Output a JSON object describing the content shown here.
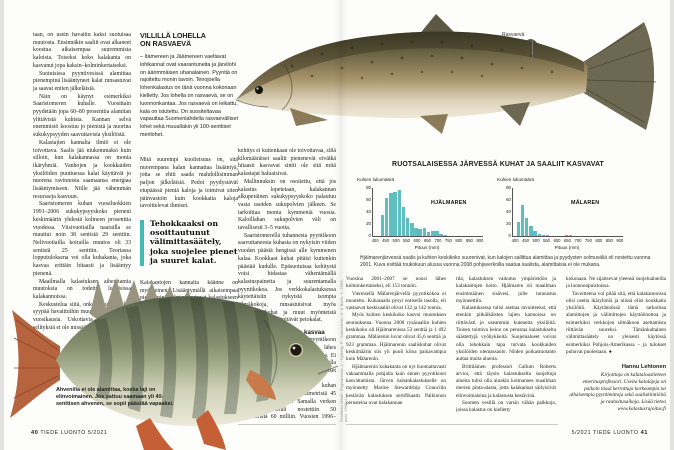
{
  "magazine": {
    "name": "TIEDE LUONTO",
    "issue": "5/2021",
    "left_page_num": "40",
    "right_page_num": "41"
  },
  "colors": {
    "accent_teal": "#43b9b2",
    "bar_teal": "#5fbebf"
  },
  "left_page": {
    "col1": [
      "taan, on usein havaittu kaksi suotuisaa muutosta. Ensinnäkin saaliit ovat alkaneet koostua aikaisempaa suuremmista kaloista. Toiseksi koko kalakanta on kasvanut jopa kaksin–kolminkertaiseksi.",
      "Suotuisissa pyyntivesissä alamittaa pienempinä lisääntyneet kalat runsastuvat ja saavat eniten jälkeläisiä.",
      "Näin on käynyt esimerkiksi Saaristomeren kuhalle. Vuosittain pyydetään jopa 60–80 prosenttia alamitan ylittävistä kuhista. Kannan selvä enemmistö koostuu jo pienistä ja nuorina sukukypsyyden saavuttavista yksilöistä.",
      "Kalastajien kannalta ilmiö ei ole toivottava. Saalis jää niukemmaksi kuin silloin, kun kalakannassa on monia ikäryhmiä. Vanhojen ja kookkaiden yksilöiden puuttuessa kalat käyttävät jo nuorena ravinnosta saamaansa energiaa lisääntymiseen. Niille jää vähemmän resursseja kasvuun.",
      "Saaristomeren kuhan vuosiluokkien 1991–2006 sukukypsyyskoko pieneni keskimäärin yhdestä kolmeen prosenttia vuodessa. Viisivuotiailla naarailla se muuttui noin 38 sentistä 29 senttiin. Nelivuotiailla koirailla muutos oli 33 sentistä 25 senttiin. Teoriassa lopputuloksena voi olla kuhakanta, joka kasvaa erittäin hitaasti ja lisääntyy pienenä.",
      "Maailmalla kalastuksen aiheuttamia muutoksia on todettu lukuisissa kalakannoissa.",
      "Keskustelua siitä, onko kalastus pahin syypää havaittuihin muutoksiin, on käyty vuosikausia. Uskottavia vaihtoehtoisia selityksiä ei ole missään löytynyt."
    ],
    "sidebar": {
      "title_line1": "VILLILLÄ LOHELLA",
      "title_line2": "ON RASVAEVÄ",
      "body": "– Itämereen ja Jäämereen vaeltavat lohikannat ovat vaarantuneita ja järvilohi on äärimmäisen uhanalainen. Pyyntiä on rajoitettu monin tavoin. Tenojoella lohenkalastus on tänä vuonna kokonaan kielletty. Jos lohella on rasvaevä, se on luonnonkantaa. Jos rasvaevä on leikattu, kala on istutettu. On suositeltavaa vapauttaa Suomenlahdella rasvaevälliset lohet sekä muuallakin yli 100-senttiset merilohet."
    },
    "col2_before_quote": [
      "Mitä suurempi kuolleisuus on, sitä nuorempana kalan kannattaa lisääntyä, jotta se ehtii saada mahdollisimman paljon jälkeläisiä. Pedot pyydystävät etupäässä pieniä kaloja ja toimivat siten päinvastoin kuin kookkaita kaloja tavoittelevat ihmiset."
    ],
    "pull_quote": "Tehokkaaksi on osoittautunut välimittasäätely, joka suojelee pienet ja suuret kalat.",
    "col2_after_quote": [
      "Kalakantojen kannalta käänne on myönteinen. Lisääntymällä aikaisempaa pienempinä kalat sopeutuvat kalastukseen ja välttävät populaatioiden romahtamisen. Ihmisen kannalta"
    ],
    "col3": [
      "kehitys ei kuitenkaan ole toivottavaa, sillä kilomääräiset saaliit pienenevät eivätkä hitaasti kasvavat sintit ole sitä mitä kalastajat haluaisivat.",
      "Mallinnuksin on osoitettu, että jos kalastus lopetetaan, kalakannan alkuperäinen sukukypsyyskoko palautuu vasta useiden sukupolvien jälkeen. Se tarkoittaa monia kymmeniä vuosia. Kaloillahan sukupolvien väli on tavallisesti 3–5 vuotta.",
      "Saaristomerellä tuhannesta pyyntikoon saavuttaneesta kuhasta on nykyisin viiden vuoden päästä hengissä alle kymmenen kalaa. Kookkaat kuhat pitäisi kuitenkin päästää kudulle. Epäsuotuisaa kehitystä voisi hidastaa vähentämällä kalastuspainetta ja suurentamalla pyyntikokoa. Jos verkkokalastuksessa käytettäisiin nykyistä isompia silmäkokoja, runsastuisivat myös kookkaat kuhat ja muut myönteistä valintapainetta ylläpitävät petokalat.",
      {
        "h": true,
        "text": "Hjälmarenjärven kuha kasvaa"
      },
      "Kun joku Suomessa ehdottaa pyyntikoon kasvattamista, hän kohtaa lähes poikkeuksetta voimakasta vastustusta. Ei voi välttyä ajatukselta, että muualla maailmassa tällaiset järkevät ehdotukset menevät läpi varmemmin.",
      "Ruotsin Hjälmarenjärvellä kuhan alamitta korotettiin 40 senttimetristä 45 senttiin vuonna 2001. Samalla verkon pienin solmuväli nostettiin 50 millimetristä 60 milliin. Vuosien 1996–2000 saalistaso oli 59 tonnia."
    ],
    "perch_caption": "Ahvenilla ei ole alamittaa, koska laji on elinvoimainen. Jos sattuu saamaan yli 40-senttisen ahvenen, se sopii päästää vapaaksi."
  },
  "right_page": {
    "fish_callout": "Rasvaevä",
    "section_title": "RUOTSALAISESSA JÄRVESSÄ KUHAT JA SAALIIT KASVAVAT",
    "chart_caption": "Hjälmarenjärvessä saalis ja kuhien keskikoko suurenivat, kun kalojen sallittua alamittaa ja pyydysten solmuväliä oli nostettu vuonna 2001. Kuva esittää toukokuun alussa vuonna 2008 pohjaverkoilla saatua saalista, alamittaisia ei ole mukana.",
    "colA": [
      "Vuosina 2001–2007 se nousi lähes kolminkertaiseksi, eli 153 tonniin.",
      "Viereisellä Mälarenjärvellä pyyntikokoa ei muutettu. Kuhasaalis pysyi entisellä tasolla, eli vastaavat keskisaaliit olivat 132 ja 142 tonnia.",
      "Myös kuhien keskikoko kasvoi muutoksen seurauksena. Vuonna 2008 rysäsaaliin kuhien keskikoko oli Hjälmarenissa 53 senttiä ja 1 492 grammaa. Mälarenin luvut olivat 45,6 senttiä ja 923 grammaa. Hjälmarenin saaliskuhat olivat keskimäärin siis yli puoli kiloa painavampia kuin Mälarenin.",
      "Hjälmarenin kuhakanta on nyt huomattavasti vakaammalla pohjalla kuin ennen pyyntikoon kasvattamista. Järven kuhankalastukselle on myönnetty Marine Stewardship Councilin kestävän kalastuksen sertifikaatti. Palkinnon perusteina ovat kalakannan"
    ],
    "colB": [
      "tila, kalastuksen vaikutus ympäristöön ja kalakantojen hoito. Hjälmaren oli maailman ensimmäinen sisävesi, jolle tunnustus myönnettiin.",
      "Kalastuksessa tulisi asettaa tavoitteeksi, että etenkin pitkäikäisten lajien kannoissa on riittävästi jo useammin kuteneita yksilöitä. Toinen toimiva keino on perustaa kalastukselta säästettyjä vyöhykkeitä. Suojelualueet voivat olla tehokkain tapa turvata kookkaiden yksilöiden olemassaolo. Niiden poikastuotanto auttaa muita alueita.",
      "Brittiläinen professori Callum Roberts arvioi, että täysin kalastukselta suojeltuja alueita tulisi olla ainakin kolmannes maailman merien pinta-alasta, jotta kalakannat säilyisivät elinvoimaisina ja kalastusta kestävinä.",
      "Suomen vesillä on varsin vähän paikkoja, joissa kalastus on kielletty"
    ],
    "colC": [
      "kokonaan. Ne sijaitsevat yleensä suojelualueilla ja luonnonpuistoissa.",
      "Tavoitteena voi pitää sitä, että kalakannoissa olisi useita ikäryhmiä ja niissä olisi kookkaita yksilöitä. Käytännössä tämä tarkoittaa alamittojen ja välimittojen käyttöönottoa ja esimerkiksi verkkojen silmäkoon asettamista riittävän suureksi. Tämänkaltainen välimittasäätely on yleisesti käytössä esimerkiksi Pohjois-Amerikassa – ja tulokset puhuvat puolestaan. ●"
    ],
    "author_name": "Hannu Lehtonen",
    "author_bio": "Kirjoittaja on kalataloustieteen emeritusprofessori. Useita kalalajeja on paikoin tässä kerrottuja korkeampia tai alhaisempia pyyntimittoja sekä saaliskiintiöitä ja rauhoitusaikoja. Lisää tietoa www.kalastusrajoitus.fi",
    "credit_vertical": "Grafiikan lähde: Ragnarsson, L., Nyberg, P., Sandström, A. & Bave, L. 2008, publ. 2008:41"
  },
  "chart_data": [
    {
      "type": "bar",
      "title": "HJÄLMAREN",
      "ylabel": "Kuhien lukumäärä",
      "xlabel": "Pituus (mm)",
      "ylim": [
        0,
        80
      ],
      "yticks": [
        0,
        20,
        40,
        60,
        80
      ],
      "xlim": [
        390,
        915
      ],
      "xticks": [
        400,
        450,
        500,
        550,
        600,
        650,
        700,
        750,
        800,
        850,
        900
      ],
      "bar_width_mm": 20,
      "points": [
        [
          437,
          35
        ],
        [
          457,
          63
        ],
        [
          477,
          72
        ],
        [
          497,
          73
        ],
        [
          517,
          76
        ],
        [
          537,
          48
        ],
        [
          557,
          30
        ],
        [
          577,
          22
        ],
        [
          597,
          13
        ],
        [
          617,
          12
        ],
        [
          637,
          13
        ],
        [
          657,
          6
        ],
        [
          677,
          8
        ],
        [
          697,
          8
        ],
        [
          717,
          3
        ],
        [
          737,
          1
        ]
      ]
    },
    {
      "type": "bar",
      "title": "MÄLAREN",
      "ylabel": "Kuhien lukumäärä",
      "xlabel": "Pituus (mm)",
      "ylim": [
        0,
        80
      ],
      "yticks": [
        0,
        20,
        40,
        60,
        80
      ],
      "xlim": [
        390,
        915
      ],
      "xticks": [
        400,
        450,
        500,
        550,
        600,
        650,
        700,
        750,
        800,
        850,
        900
      ],
      "bar_width_mm": 20,
      "points": [
        [
          417,
          24
        ],
        [
          437,
          52
        ],
        [
          457,
          30
        ],
        [
          477,
          17
        ],
        [
          497,
          8
        ],
        [
          517,
          4
        ],
        [
          537,
          2
        ],
        [
          557,
          1
        ],
        [
          647,
          2
        ],
        [
          667,
          1
        ]
      ]
    }
  ]
}
